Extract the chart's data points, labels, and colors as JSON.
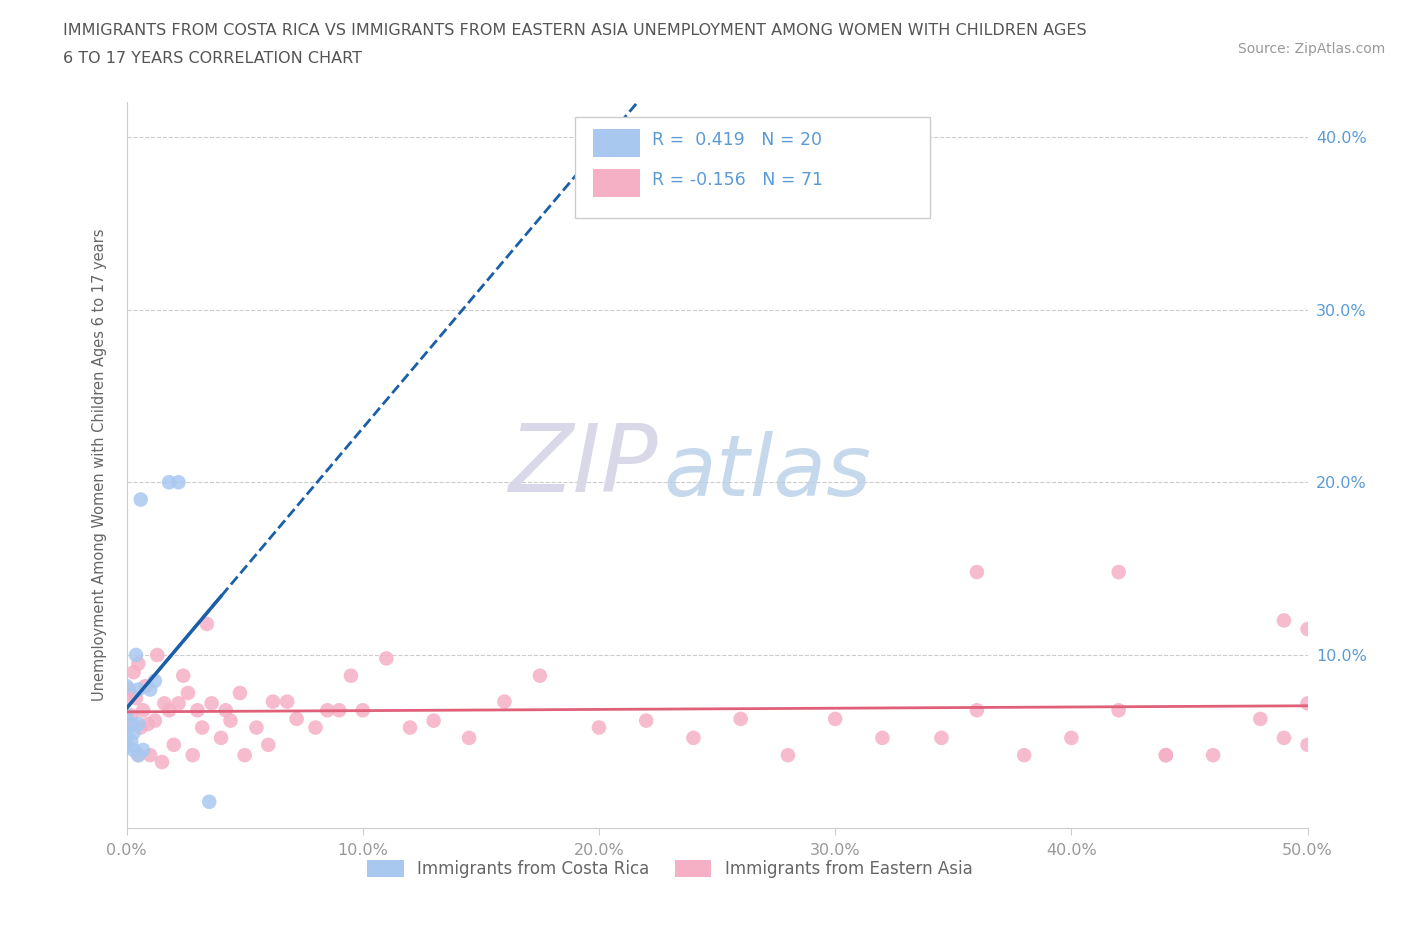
{
  "title_line1": "IMMIGRANTS FROM COSTA RICA VS IMMIGRANTS FROM EASTERN ASIA UNEMPLOYMENT AMONG WOMEN WITH CHILDREN AGES",
  "title_line2": "6 TO 17 YEARS CORRELATION CHART",
  "source_text": "Source: ZipAtlas.com",
  "ylabel": "Unemployment Among Women with Children Ages 6 to 17 years",
  "xlim": [
    0.0,
    0.5
  ],
  "ylim": [
    0.0,
    0.42
  ],
  "xticks": [
    0.0,
    0.1,
    0.2,
    0.3,
    0.4,
    0.5
  ],
  "yticks": [
    0.0,
    0.1,
    0.2,
    0.3,
    0.4
  ],
  "r_cr": " 0.419",
  "n_cr": "20",
  "r_ea": "-0.156",
  "n_ea": "71",
  "color_cr": "#a8c8f0",
  "color_ea": "#f5b0c5",
  "line_color_cr": "#1a5fa8",
  "line_color_ea": "#e0607a",
  "watermark_zip": "ZIP",
  "watermark_atlas": "atlas",
  "label_cr": "Immigrants from Costa Rica",
  "label_ea": "Immigrants from Eastern Asia",
  "tick_color_y": "#5b9bd5",
  "tick_color_x": "#999999",
  "cr_x": [
    0.0,
    0.0,
    0.0,
    0.0,
    0.0,
    0.002,
    0.002,
    0.003,
    0.003,
    0.004,
    0.005,
    0.005,
    0.005,
    0.006,
    0.007,
    0.01,
    0.012,
    0.018,
    0.022,
    0.035
  ],
  "cr_y": [
    0.047,
    0.052,
    0.055,
    0.065,
    0.082,
    0.05,
    0.06,
    0.045,
    0.055,
    0.1,
    0.042,
    0.06,
    0.08,
    0.19,
    0.045,
    0.08,
    0.085,
    0.2,
    0.2,
    0.015
  ],
  "ea_x": [
    0.0,
    0.0,
    0.001,
    0.002,
    0.003,
    0.004,
    0.005,
    0.005,
    0.006,
    0.007,
    0.008,
    0.009,
    0.01,
    0.012,
    0.013,
    0.015,
    0.016,
    0.018,
    0.02,
    0.022,
    0.024,
    0.026,
    0.028,
    0.03,
    0.032,
    0.034,
    0.036,
    0.04,
    0.042,
    0.044,
    0.048,
    0.05,
    0.055,
    0.06,
    0.062,
    0.068,
    0.072,
    0.08,
    0.085,
    0.09,
    0.095,
    0.1,
    0.11,
    0.12,
    0.13,
    0.145,
    0.16,
    0.175,
    0.2,
    0.22,
    0.24,
    0.26,
    0.28,
    0.3,
    0.32,
    0.345,
    0.36,
    0.38,
    0.4,
    0.42,
    0.44,
    0.46,
    0.48,
    0.49,
    0.5,
    0.5,
    0.36,
    0.42,
    0.44,
    0.49,
    0.5
  ],
  "ea_y": [
    0.06,
    0.075,
    0.08,
    0.065,
    0.09,
    0.075,
    0.042,
    0.095,
    0.058,
    0.068,
    0.082,
    0.06,
    0.042,
    0.062,
    0.1,
    0.038,
    0.072,
    0.068,
    0.048,
    0.072,
    0.088,
    0.078,
    0.042,
    0.068,
    0.058,
    0.118,
    0.072,
    0.052,
    0.068,
    0.062,
    0.078,
    0.042,
    0.058,
    0.048,
    0.073,
    0.073,
    0.063,
    0.058,
    0.068,
    0.068,
    0.088,
    0.068,
    0.098,
    0.058,
    0.062,
    0.052,
    0.073,
    0.088,
    0.058,
    0.062,
    0.052,
    0.063,
    0.042,
    0.063,
    0.052,
    0.052,
    0.068,
    0.042,
    0.052,
    0.068,
    0.042,
    0.042,
    0.063,
    0.052,
    0.048,
    0.072,
    0.148,
    0.148,
    0.042,
    0.12,
    0.115
  ]
}
